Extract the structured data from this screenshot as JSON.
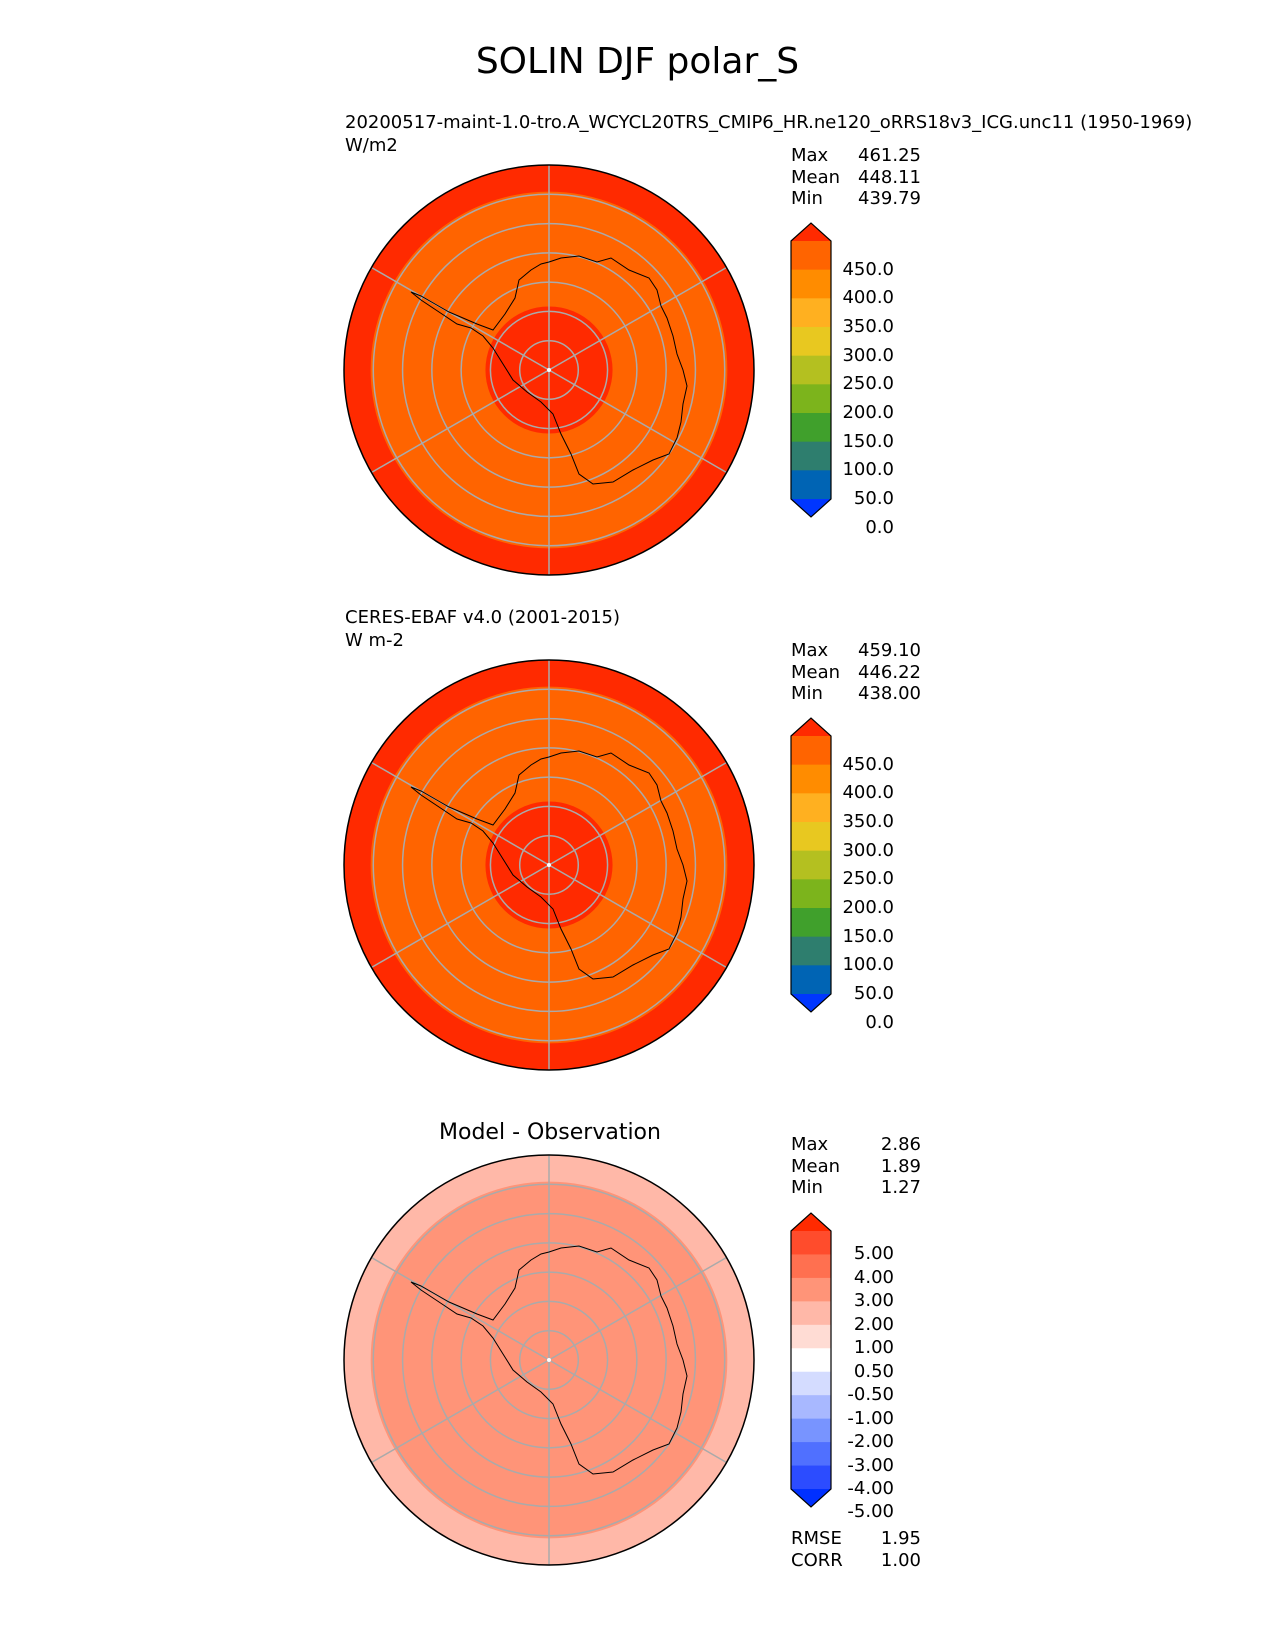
{
  "main_title": "SOLIN DJF polar_S",
  "panels": [
    {
      "title": "20200517-maint-1.0-tro.A_WCYCL20TRS_CMIP6_HR.ne120_oRRS18v3_ICG.unc11 (1950-1969)",
      "units": "W/m2",
      "stats": {
        "max_label": "Max",
        "max": "461.25",
        "mean_label": "Mean",
        "mean": "448.11",
        "min_label": "Min",
        "min": "439.79"
      },
      "field": {
        "outer": "#ff2a00",
        "middle": "#ff6400",
        "center": "#ff2a00"
      },
      "colorbar": {
        "labels": [
          "450.0",
          "400.0",
          "350.0",
          "300.0",
          "250.0",
          "200.0",
          "150.0",
          "100.0",
          "50.0",
          "0.0"
        ],
        "colors": [
          "#ff2a00",
          "#ff6400",
          "#ff8c00",
          "#ffb020",
          "#e8c820",
          "#b4c020",
          "#7cb41c",
          "#40a02c",
          "#2e7e6e",
          "#0064b4",
          "#0036ff"
        ]
      }
    },
    {
      "title": "CERES-EBAF v4.0 (2001-2015)",
      "units": "W m-2",
      "stats": {
        "max_label": "Max",
        "max": "459.10",
        "mean_label": "Mean",
        "mean": "446.22",
        "min_label": "Min",
        "min": "438.00"
      },
      "field": {
        "outer": "#ff2a00",
        "middle": "#ff6400",
        "center": "#ff2a00"
      },
      "colorbar": {
        "labels": [
          "450.0",
          "400.0",
          "350.0",
          "300.0",
          "250.0",
          "200.0",
          "150.0",
          "100.0",
          "50.0",
          "0.0"
        ],
        "colors": [
          "#ff2a00",
          "#ff6400",
          "#ff8c00",
          "#ffb020",
          "#e8c820",
          "#b4c020",
          "#7cb41c",
          "#40a02c",
          "#2e7e6e",
          "#0064b4",
          "#0036ff"
        ]
      }
    },
    {
      "title": "Model - Observation",
      "stats": {
        "max_label": "Max",
        "max": "2.86",
        "mean_label": "Mean",
        "mean": "1.89",
        "min_label": "Min",
        "min": "1.27"
      },
      "field": {
        "outer": "#ffb8a8",
        "middle": "#ff9478",
        "center": "#ff9478"
      },
      "colorbar": {
        "labels": [
          "5.00",
          "4.00",
          "3.00",
          "2.00",
          "1.00",
          "0.50",
          "-0.50",
          "-1.00",
          "-2.00",
          "-3.00",
          "-4.00",
          "-5.00"
        ],
        "colors": [
          "#ff2a00",
          "#ff4c2c",
          "#ff7050",
          "#ff9478",
          "#ffb8a8",
          "#ffdcd4",
          "#ffffff",
          "#d4dcff",
          "#a8b8ff",
          "#7894ff",
          "#5070ff",
          "#2c4cff",
          "#0030ff"
        ]
      },
      "rmse_label": "RMSE",
      "rmse": "1.95",
      "corr_label": "CORR",
      "corr": "1.00"
    }
  ],
  "colors": {
    "gridline": "#aaaaaa",
    "coastline": "#000000"
  }
}
